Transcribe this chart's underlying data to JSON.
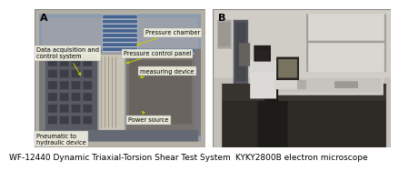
{
  "panel_a_label": "A",
  "panel_b_label": "B",
  "caption_a": "WF-12440 Dynamic Triaxial-Torsion Shear Test System",
  "caption_b": "KYKY2800B electron microscope",
  "bg_color": "#ffffff",
  "caption_fontsize": 6.5,
  "label_fontsize": 8,
  "annot_fontsize": 4.8,
  "annot_color": "#c8cc00",
  "border_color": "#888888",
  "box_fc": "#f0f0e0",
  "box_ec": "#999999"
}
